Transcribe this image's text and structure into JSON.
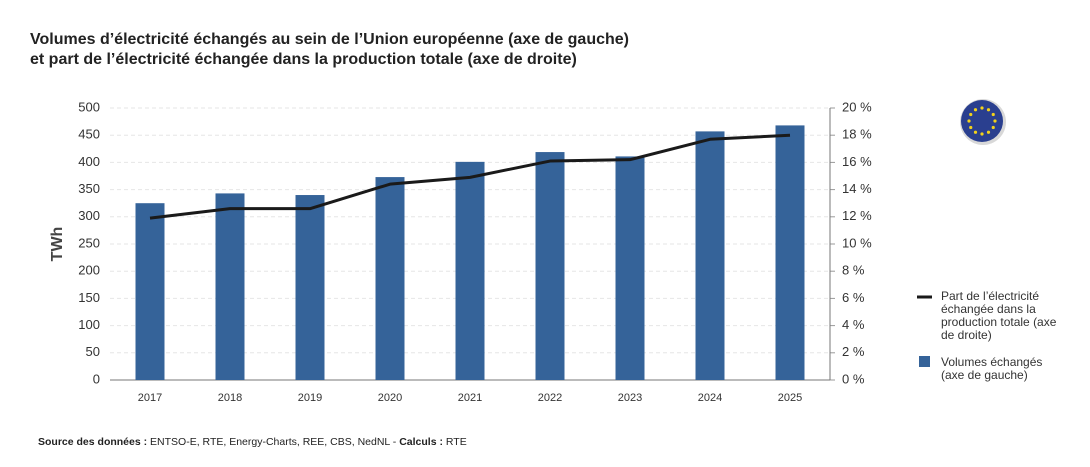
{
  "chart_data": {
    "type": "bar",
    "title": [
      "Volumes d’électricité échangés au sein de l’Union européenne (axe de gauche)",
      "et part de l’électricité échangée dans la production totale (axe de droite)"
    ],
    "y_label": "TWh",
    "categories": [
      "2017",
      "2018",
      "2019",
      "2020",
      "2021",
      "2022",
      "2023",
      "2024",
      "2025"
    ],
    "series": [
      {
        "name": "Volumes échangés (axe de gauche)",
        "type": "bar",
        "color": "#356399",
        "values": [
          325,
          343,
          340,
          373,
          401,
          419,
          411,
          457,
          468
        ]
      },
      {
        "name": "Part de l’électricité échangée dans la production totale (axe de droite)",
        "type": "line",
        "axis": "y2",
        "color": "#1a1a1a",
        "values": [
          11.9,
          12.6,
          12.6,
          14.4,
          14.9,
          16.1,
          16.2,
          17.7,
          18.0
        ]
      }
    ],
    "ylim": [
      0,
      500
    ],
    "yticks": [
      0,
      50,
      100,
      150,
      200,
      250,
      300,
      350,
      400,
      450,
      500
    ],
    "y2lim": [
      0,
      20
    ],
    "y2ticks": [
      {
        "value": 0,
        "label": "0 %"
      },
      {
        "value": 2,
        "label": "2 %"
      },
      {
        "value": 4,
        "label": "4 %"
      },
      {
        "value": 6,
        "label": "6 %"
      },
      {
        "value": 8,
        "label": "8 %"
      },
      {
        "value": 10,
        "label": "10 %"
      },
      {
        "value": 12,
        "label": "12 %"
      },
      {
        "value": 14,
        "label": "14 %"
      },
      {
        "value": 16,
        "label": "16 %"
      },
      {
        "value": 18,
        "label": "18 %"
      },
      {
        "value": 20,
        "label": "20 %"
      }
    ],
    "grid": true,
    "source": {
      "label": "Source des données :",
      "text": "ENTSO-E, RTE, Energy-Charts, REE, CBS, NedNL -",
      "calc_label": "Calculs :",
      "calc_text": "RTE"
    }
  }
}
